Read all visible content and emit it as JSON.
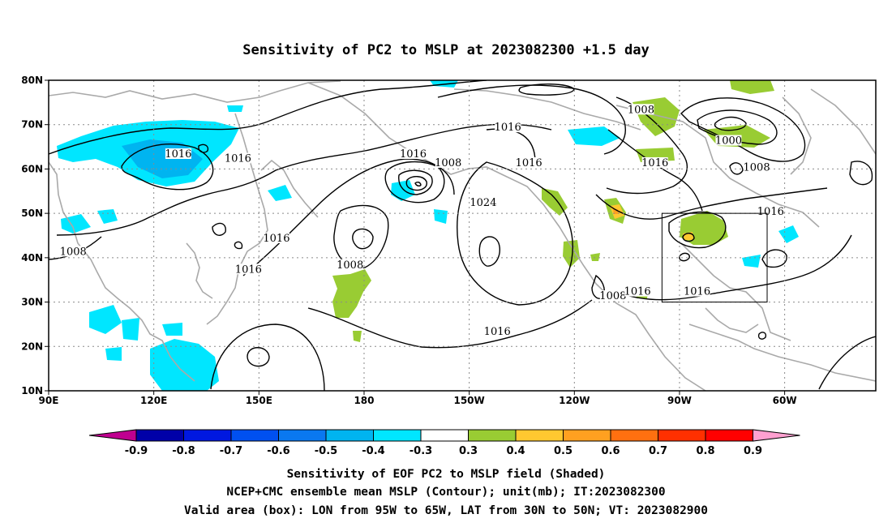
{
  "title": "Sensitivity of PC2 to MSLP at 2023082300 +1.5 day",
  "map": {
    "lat_ticks": [
      "80N",
      "70N",
      "60N",
      "50N",
      "40N",
      "30N",
      "20N",
      "10N"
    ],
    "lon_ticks": [
      "90E",
      "120E",
      "150E",
      "180",
      "150W",
      "120W",
      "90W",
      "60W"
    ],
    "valid_box": {
      "lon_from": "95W",
      "lon_to": "65W",
      "lat_from": "30N",
      "lat_to": "50N"
    }
  },
  "contour_labels": [
    {
      "text": "1016",
      "lon": 127,
      "lat": 63
    },
    {
      "text": "1016",
      "lon": 144,
      "lat": 62
    },
    {
      "text": "1008",
      "lon": 97,
      "lat": 41
    },
    {
      "text": "1016",
      "lon": 155,
      "lat": 44
    },
    {
      "text": "1016",
      "lon": 147,
      "lat": 37
    },
    {
      "text": "1008",
      "lon": 176,
      "lat": 38
    },
    {
      "text": "1016",
      "lon": 194,
      "lat": 63
    },
    {
      "text": "1008",
      "lon": 204,
      "lat": 61
    },
    {
      "text": "1016",
      "lon": 221,
      "lat": 69
    },
    {
      "text": "1016",
      "lon": 227,
      "lat": 61
    },
    {
      "text": "1024",
      "lon": 214,
      "lat": 52
    },
    {
      "text": "1016",
      "lon": 218,
      "lat": 23
    },
    {
      "text": "1008",
      "lon": 259,
      "lat": 73
    },
    {
      "text": "1016",
      "lon": 263,
      "lat": 61
    },
    {
      "text": "1000",
      "lon": 284,
      "lat": 66
    },
    {
      "text": "1008",
      "lon": 292,
      "lat": 60
    },
    {
      "text": "1016",
      "lon": 296,
      "lat": 50
    },
    {
      "text": "1008",
      "lon": 251,
      "lat": 31
    },
    {
      "text": "1016",
      "lon": 258,
      "lat": 32
    },
    {
      "text": "1016",
      "lon": 275,
      "lat": 32
    }
  ],
  "colorbar": {
    "labels": [
      "-0.9",
      "-0.8",
      "-0.7",
      "-0.6",
      "-0.5",
      "-0.4",
      "-0.3",
      "0.3",
      "0.4",
      "0.5",
      "0.6",
      "0.7",
      "0.8",
      "0.9"
    ],
    "colors": [
      "#0000a8",
      "#0018e0",
      "#0050f0",
      "#0a78f0",
      "#00b4f0",
      "#00e6ff",
      "#ffffff",
      "#99cc33",
      "#ffc830",
      "#ffa020",
      "#ff7010",
      "#ff3000",
      "#ff0000"
    ],
    "low_color": "#c00090",
    "high_color": "#ffa0d0"
  },
  "caption": [
    "Sensitivity of EOF PC2 to MSLP field (Shaded)",
    "NCEP+CMC ensemble mean MSLP (Contour); unit(mb); IT:2023082300",
    "Valid area (box): LON from 95W to 65W, LAT from 30N to 50N; VT: 2023082900"
  ]
}
